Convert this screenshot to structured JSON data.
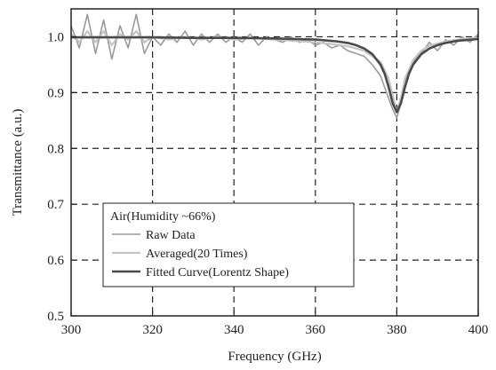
{
  "chart_data": {
    "type": "line",
    "title": "",
    "xlabel": "Frequency (GHz)",
    "ylabel": "Transmittance (a.u.)",
    "xlim": [
      300,
      400
    ],
    "ylim": [
      0.5,
      1.05
    ],
    "x_ticks": [
      "300",
      "320",
      "340",
      "360",
      "380",
      "400"
    ],
    "y_ticks": [
      "0.5",
      "0.6",
      "0.7",
      "0.8",
      "0.9",
      "1.0"
    ],
    "grid": "dashed",
    "legend": {
      "placement": "lower-left",
      "title": "Air(Humidity ~66%)",
      "entries": [
        "Raw Data",
        "Averaged(20 Times)",
        "Fitted Curve(Lorentz Shape)"
      ]
    },
    "series": [
      {
        "name": "Raw Data",
        "color": "#9a9a9a",
        "x": [
          300,
          302,
          304,
          306,
          308,
          310,
          312,
          314,
          316,
          318,
          320,
          322,
          324,
          326,
          328,
          330,
          332,
          334,
          336,
          338,
          340,
          342,
          344,
          346,
          348,
          350,
          352,
          354,
          356,
          358,
          360,
          362,
          364,
          366,
          368,
          370,
          372,
          374,
          376,
          378,
          379,
          380,
          381,
          382,
          384,
          386,
          388,
          390,
          392,
          394,
          396,
          398,
          400
        ],
        "y": [
          1.02,
          0.98,
          1.04,
          0.97,
          1.03,
          0.96,
          1.02,
          0.98,
          1.04,
          0.97,
          1.0,
          0.985,
          1.005,
          0.99,
          1.01,
          0.985,
          1.005,
          0.99,
          1.005,
          0.99,
          1.0,
          0.99,
          1.005,
          0.985,
          1.0,
          0.995,
          0.99,
          1.0,
          0.99,
          0.995,
          0.985,
          0.99,
          0.98,
          0.985,
          0.975,
          0.97,
          0.965,
          0.95,
          0.93,
          0.89,
          0.87,
          0.855,
          0.88,
          0.92,
          0.955,
          0.97,
          0.99,
          0.975,
          0.995,
          0.985,
          1.0,
          0.99,
          1.005
        ]
      },
      {
        "name": "Averaged(20 Times)",
        "color": "#c4c4c4",
        "x": [
          300,
          302,
          304,
          306,
          308,
          310,
          312,
          314,
          316,
          318,
          320,
          324,
          328,
          332,
          336,
          340,
          344,
          348,
          352,
          356,
          360,
          364,
          368,
          372,
          376,
          378,
          379,
          380,
          381,
          382,
          384,
          386,
          388,
          392,
          396,
          400
        ],
        "y": [
          1.005,
          0.99,
          1.01,
          0.99,
          1.01,
          0.985,
          1.005,
          0.995,
          1.01,
          0.99,
          1.0,
          0.995,
          1.0,
          0.995,
          1.0,
          0.995,
          0.998,
          0.996,
          0.994,
          0.992,
          0.99,
          0.987,
          0.983,
          0.975,
          0.955,
          0.925,
          0.895,
          0.865,
          0.89,
          0.925,
          0.958,
          0.975,
          0.984,
          0.992,
          0.996,
          0.998
        ]
      },
      {
        "name": "Fitted Curve(Lorentz Shape)",
        "color": "#4a4a4a",
        "x": [
          300,
          310,
          320,
          330,
          340,
          350,
          355,
          360,
          365,
          368,
          370,
          372,
          374,
          376,
          377,
          378,
          379,
          380,
          381,
          382,
          383,
          384,
          386,
          388,
          390,
          392,
          395,
          400
        ],
        "y": [
          0.999,
          0.999,
          0.999,
          0.998,
          0.998,
          0.997,
          0.996,
          0.995,
          0.992,
          0.989,
          0.985,
          0.979,
          0.969,
          0.95,
          0.934,
          0.91,
          0.881,
          0.865,
          0.881,
          0.91,
          0.934,
          0.95,
          0.969,
          0.979,
          0.985,
          0.989,
          0.993,
          0.996
        ]
      }
    ]
  }
}
